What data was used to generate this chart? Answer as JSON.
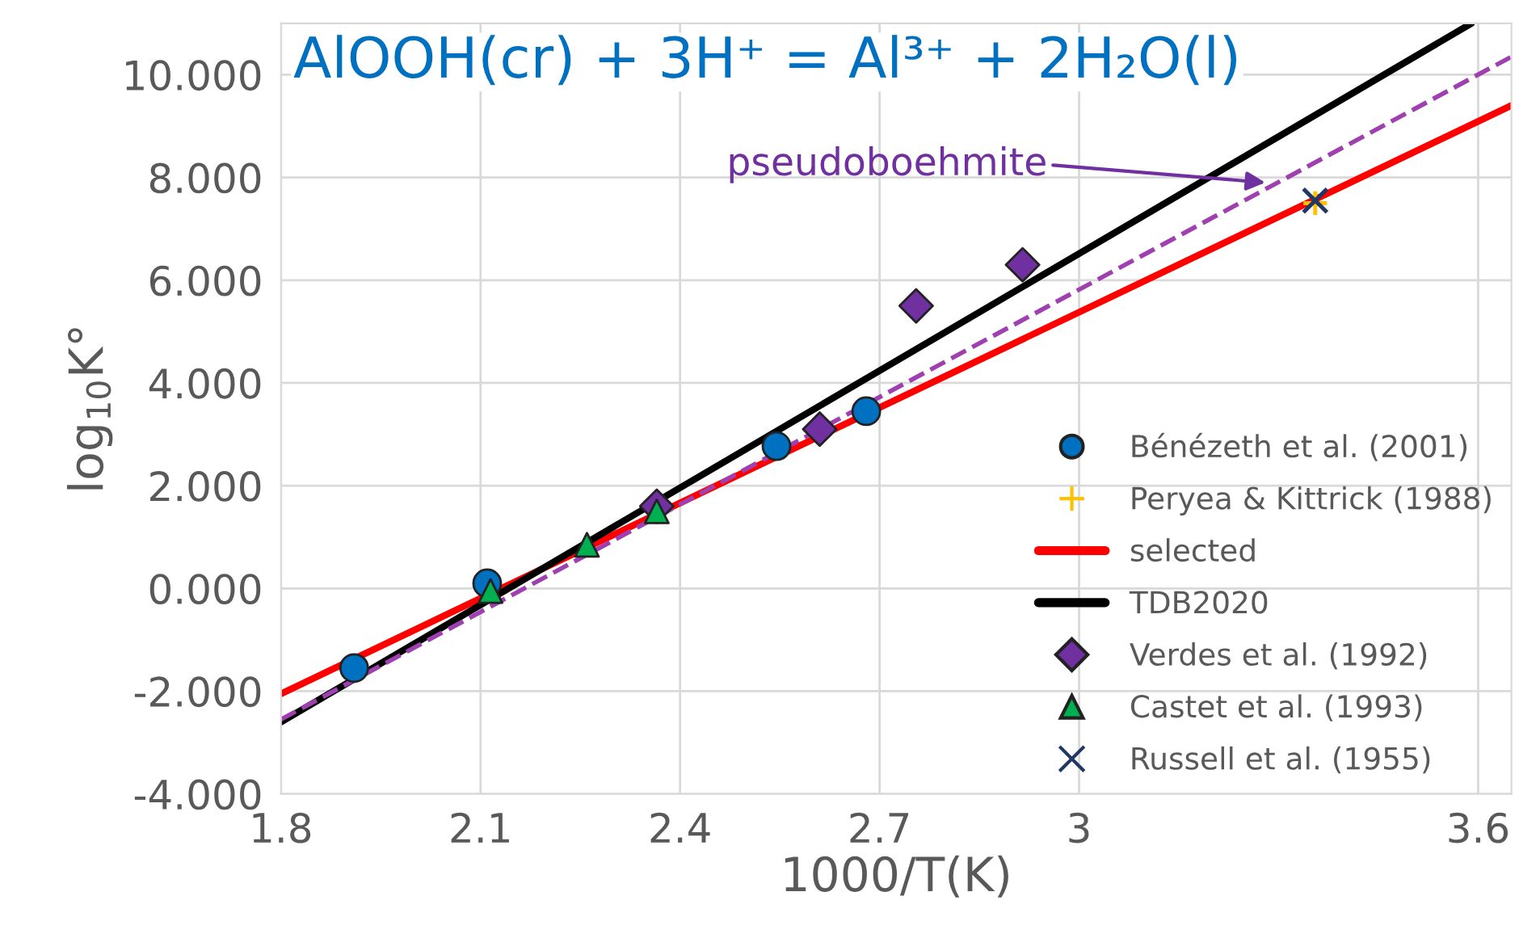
{
  "chart_data": {
    "type": "scatter",
    "title": "AlOOH(cr) + 3H⁺ = Al³⁺ + 2H₂O(l)",
    "xlabel": "1000/T(K)",
    "ylabel": "log$_{10}$K°",
    "xlim": [
      1.8,
      3.65
    ],
    "xticks": [
      1.8,
      2.1,
      2.4,
      2.7,
      {
        "value": 3,
        "label": "3"
      },
      3.6
    ],
    "ylim": [
      -4,
      11
    ],
    "yticks": [
      {
        "value": -4,
        "label": "-4.000"
      },
      {
        "value": -2,
        "label": "-2.000"
      },
      {
        "value": 0,
        "label": "0.000"
      },
      {
        "value": 2,
        "label": "2.000"
      },
      {
        "value": 4,
        "label": "4.000"
      },
      {
        "value": 6,
        "label": "6.000"
      },
      {
        "value": 8,
        "label": "8.000"
      },
      {
        "value": 10,
        "label": "10.000"
      }
    ],
    "grid": true,
    "legend": "bottom right",
    "annotations": [
      {
        "text": "pseudoboehmite",
        "x": 3.28,
        "y": 7.9
      }
    ],
    "series": [
      {
        "name": "Bénézeth et al. (2001)",
        "marker": "circle",
        "color": "#0070c0",
        "x": [
          1.91,
          2.11,
          2.545,
          2.68
        ],
        "values": [
          -1.55,
          0.1,
          2.77,
          3.45
        ]
      },
      {
        "name": "Peryea & Kittrick (1988)",
        "marker": "plus",
        "color": "#ffc000",
        "x": [
          3.355
        ],
        "values": [
          7.5
        ]
      },
      {
        "name": "selected",
        "type": "line",
        "marker": "none",
        "line_style": "solid",
        "color": "#ff0000",
        "x": [
          1.8,
          3.65
        ],
        "values": [
          -2.05,
          9.4
        ]
      },
      {
        "name": "TDB2020",
        "type": "line",
        "marker": "none",
        "line_style": "solid",
        "color": "#000000",
        "x": [
          1.8,
          3.59
        ],
        "values": [
          -2.6,
          11
        ]
      },
      {
        "name": "Verdes et al. (1992)",
        "marker": "diamond",
        "color": "#7030a0",
        "x": [
          2.365,
          2.61,
          2.755,
          2.915
        ],
        "values": [
          1.6,
          3.1,
          5.5,
          6.3
        ]
      },
      {
        "name": "Castet et al. (1993)",
        "marker": "triangle",
        "color": "#00b050",
        "x": [
          2.115,
          2.26,
          2.365
        ],
        "values": [
          -0.05,
          0.85,
          1.5
        ]
      },
      {
        "name": "Russell et al. (1955)",
        "marker": "cross",
        "color": "#1f3864",
        "x": [
          3.355
        ],
        "values": [
          7.55
        ]
      },
      {
        "type": "line",
        "marker": "none",
        "line_style": "dashed",
        "color": "#a040b0",
        "x": [
          1.8,
          3.65
        ],
        "values": [
          -2.55,
          10.35
        ]
      }
    ]
  }
}
